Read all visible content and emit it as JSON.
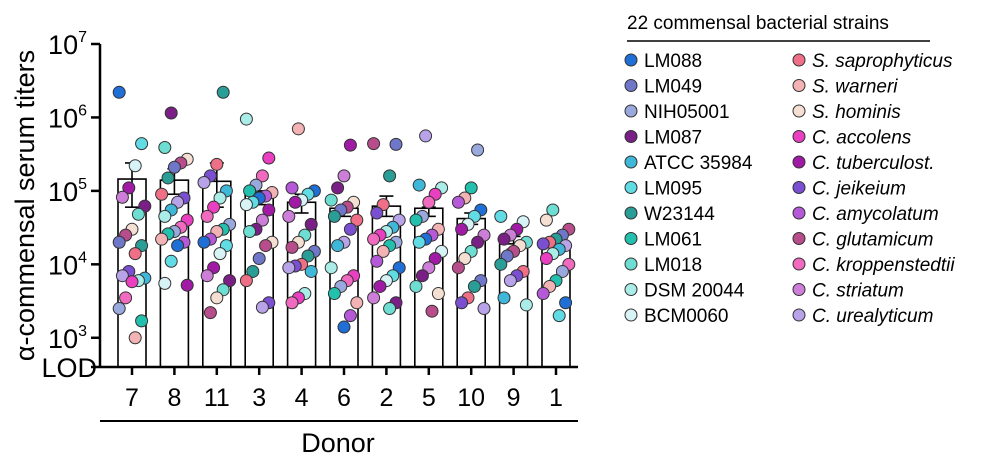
{
  "chart_data": {
    "type": "bar",
    "scale": "log10",
    "ylabel": "α-commensal  serum titers",
    "xlabel": "Donor",
    "ylim": [
      400,
      10000000
    ],
    "ytick_values": [
      1000,
      10000,
      100000,
      1000000,
      10000000
    ],
    "ytick_base": "10",
    "ytick_exponents": [
      "3",
      "4",
      "5",
      "6",
      "7"
    ],
    "lod_label": "LOD",
    "legend_title": "22 commensal bacterial strains",
    "strains": [
      {
        "name": "LM088",
        "color": "#1f6fd6",
        "italic": false
      },
      {
        "name": "LM049",
        "color": "#6f77c9",
        "italic": false
      },
      {
        "name": "NIH05001",
        "color": "#99a8dd",
        "italic": false
      },
      {
        "name": "LM087",
        "color": "#7a1f86",
        "italic": false
      },
      {
        "name": "ATCC 35984",
        "color": "#3fb7d9",
        "italic": false
      },
      {
        "name": "LM095",
        "color": "#61dbe4",
        "italic": false
      },
      {
        "name": "W23144",
        "color": "#2a9d96",
        "italic": false
      },
      {
        "name": "LM061",
        "color": "#23c0ae",
        "italic": false
      },
      {
        "name": "LM018",
        "color": "#6fded2",
        "italic": false
      },
      {
        "name": "DSM 20044",
        "color": "#a9ece8",
        "italic": false
      },
      {
        "name": "BCM0060",
        "color": "#d7f3f6",
        "italic": false
      },
      {
        "name": "S. saprophyticus",
        "color": "#ef6f86",
        "italic": true
      },
      {
        "name": "S. warneri",
        "color": "#f3b3b4",
        "italic": true
      },
      {
        "name": "S. hominis",
        "color": "#f5dfd3",
        "italic": true
      },
      {
        "name": "C. accolens",
        "color": "#ea3fc0",
        "italic": true
      },
      {
        "name": "C. tuberculost.",
        "color": "#a11aa5",
        "italic": true
      },
      {
        "name": "C. jeikeium",
        "color": "#7a4fd1",
        "italic": true
      },
      {
        "name": "C. amycolatum",
        "color": "#b559d9",
        "italic": true
      },
      {
        "name": "C. glutamicum",
        "color": "#b74d8a",
        "italic": true
      },
      {
        "name": "C. kroppenstedtii",
        "color": "#f06abf",
        "italic": true
      },
      {
        "name": "C. striatum",
        "color": "#cd7ed8",
        "italic": true
      },
      {
        "name": "C. urealyticum",
        "color": "#b9a3e8",
        "italic": true
      }
    ],
    "donors": [
      {
        "label": "7",
        "bar": 145000,
        "error_upper": 240000,
        "error_lower": 60000,
        "points": [
          2200000,
          440000,
          220000,
          110000,
          82000,
          62000,
          48000,
          30000,
          25000,
          20000,
          18000,
          14000,
          8000,
          7000,
          6500,
          6000,
          5800,
          3500,
          2500,
          1700,
          1000
        ]
      },
      {
        "label": "8",
        "bar": 140000,
        "error_upper": 200000,
        "error_lower": 90000,
        "points": [
          1150000,
          390000,
          270000,
          240000,
          210000,
          150000,
          90000,
          80000,
          70000,
          55000,
          45000,
          40000,
          32000,
          28000,
          26000,
          22000,
          20000,
          18000,
          11000,
          5500,
          5200
        ]
      },
      {
        "label": "11",
        "bar": 135000,
        "error_upper": 240000,
        "error_lower": 60000,
        "points": [
          2200000,
          230000,
          160000,
          130000,
          100000,
          80000,
          60000,
          45000,
          35000,
          30000,
          28000,
          22000,
          20000,
          18000,
          14000,
          9000,
          7000,
          6000,
          4500,
          3500,
          2200
        ]
      },
      {
        "label": "3",
        "bar": 95000,
        "error_upper": 100000,
        "error_lower": 65000,
        "points": [
          950000,
          280000,
          160000,
          120000,
          100000,
          95000,
          85000,
          80000,
          70000,
          65000,
          55000,
          40000,
          30000,
          28000,
          20000,
          18000,
          12000,
          8000,
          6000,
          3000,
          2600
        ]
      },
      {
        "label": "4",
        "bar": 70000,
        "error_upper": 90000,
        "error_lower": 50000,
        "points": [
          700000,
          110000,
          100000,
          90000,
          75000,
          70000,
          45000,
          35000,
          25000,
          20000,
          17000,
          15000,
          13000,
          10000,
          9500,
          9000,
          8000,
          4000,
          3500,
          3000
        ]
      },
      {
        "label": "6",
        "bar": 58000,
        "error_upper": 60000,
        "error_lower": 45000,
        "points": [
          420000,
          160000,
          110000,
          75000,
          70000,
          60000,
          55000,
          45000,
          40000,
          30000,
          20000,
          18000,
          9000,
          7000,
          6000,
          5000,
          4000,
          3000,
          2000,
          1400
        ]
      },
      {
        "label": "2",
        "bar": 62000,
        "error_upper": 85000,
        "error_lower": 45000,
        "points": [
          440000,
          430000,
          160000,
          65000,
          50000,
          40000,
          32000,
          28000,
          25000,
          22000,
          20000,
          18000,
          15000,
          11000,
          9000,
          7000,
          6000,
          5000,
          3500,
          3000,
          2500
        ]
      },
      {
        "label": "5",
        "bar": 58000,
        "error_upper": 60000,
        "error_lower": 45000,
        "points": [
          560000,
          120000,
          110000,
          90000,
          70000,
          45000,
          40000,
          30000,
          25000,
          22000,
          20000,
          15000,
          12000,
          9000,
          7000,
          5000,
          4000,
          2300
        ]
      },
      {
        "label": "10",
        "bar": 42000,
        "error_upper": 50000,
        "error_lower": 35000,
        "points": [
          360000,
          110000,
          80000,
          70000,
          55000,
          45000,
          35000,
          30000,
          25000,
          20000,
          15000,
          12000,
          9000,
          6000,
          5000,
          3500,
          3000,
          2500
        ]
      },
      {
        "label": "9",
        "bar": 19000,
        "error_upper": 24000,
        "error_lower": 16000,
        "points": [
          45000,
          38000,
          30000,
          25000,
          22000,
          20000,
          18000,
          15000,
          13000,
          10000,
          8000,
          7000,
          6000,
          3500,
          2800
        ]
      },
      {
        "label": "1",
        "bar": 17000,
        "error_upper": 21000,
        "error_lower": 14000,
        "points": [
          55000,
          40000,
          30000,
          25000,
          22000,
          20000,
          19000,
          18000,
          16000,
          14000,
          12000,
          10000,
          8000,
          6000,
          5000,
          4000,
          3000,
          2000
        ]
      }
    ]
  }
}
